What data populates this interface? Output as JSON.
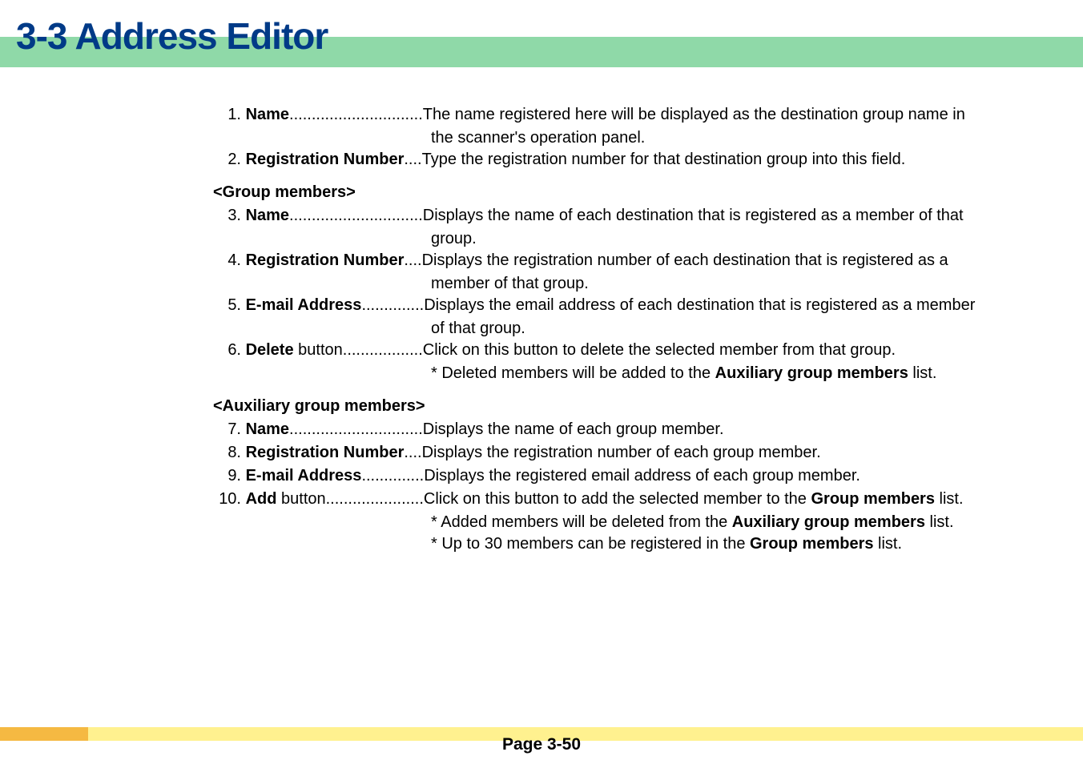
{
  "header": {
    "title": "3-3  Address Editor",
    "title_color": "#003a87",
    "title_fontsize": 46,
    "band_color": "#8fd9a8"
  },
  "sections": [
    {
      "header": null,
      "items": [
        {
          "num": "1.",
          "label": "Name",
          "dots": " .............................. ",
          "desc": "The name registered here will be displayed as the destination group name in",
          "continuation": [
            "the scanner's operation panel."
          ]
        },
        {
          "num": "2.",
          "label": "Registration Number",
          "dots": " .... ",
          "desc": "Type the registration number for that destination group into this field.",
          "continuation": []
        }
      ]
    },
    {
      "header": "<Group members>",
      "items": [
        {
          "num": "3.",
          "label": "Name",
          "dots": " .............................. ",
          "desc": "Displays the name of each destination that is registered as a member of that",
          "continuation": [
            "group."
          ]
        },
        {
          "num": "4.",
          "label": "Registration Number",
          "dots": " .... ",
          "desc": "Displays the registration number of each destination that is registered as a",
          "continuation": [
            "member of that group."
          ]
        },
        {
          "num": "5.",
          "label": "E-mail Address",
          "dots": " .............. ",
          "desc": "Displays the email address of each destination that is registered as a member",
          "continuation": [
            "of that group."
          ]
        },
        {
          "num": "6.",
          "label": "Delete",
          "label_suffix": " button",
          "dots": " .................. ",
          "desc": "Click on this button to delete the selected member from that group.",
          "continuation": [],
          "notes": [
            {
              "prefix": "* ",
              "text": "Deleted members will be added to the ",
              "bold": "Auxiliary group members",
              "suffix": " list."
            }
          ]
        }
      ]
    },
    {
      "header": "<Auxiliary group members>",
      "items": [
        {
          "num": "7.",
          "label": "Name",
          "dots": " .............................. ",
          "desc": "Displays the name of each group member.",
          "continuation": []
        },
        {
          "num": "8.",
          "label": "Registration Number",
          "dots": " .... ",
          "desc": "Displays the registration number of each group member.",
          "continuation": []
        },
        {
          "num": "9.",
          "label": "E-mail Address",
          "dots": " .............. ",
          "desc": "Displays the registered email address of each group member.",
          "continuation": []
        },
        {
          "num": "10.",
          "label": "Add",
          "label_suffix": " button",
          "dots": " ...................... ",
          "desc_prefix": "Click on this button to add the selected member to the ",
          "desc_bold": "Group members",
          "desc_suffix": " list.",
          "continuation": [],
          "notes": [
            {
              "prefix": "* ",
              "text": "Added members will be deleted from the ",
              "bold": "Auxiliary group members",
              "suffix": " list."
            },
            {
              "prefix": "* ",
              "text": "Up to 30 members can be registered in the ",
              "bold": "Group members",
              "suffix": " list."
            }
          ]
        }
      ]
    }
  ],
  "footer": {
    "text": "Page 3-50",
    "band_color": "#fff18f",
    "accent_color": "#f5b942"
  },
  "colors": {
    "text": "#000000",
    "background": "#ffffff"
  },
  "fontsize": {
    "body": 20,
    "footer": 21
  }
}
